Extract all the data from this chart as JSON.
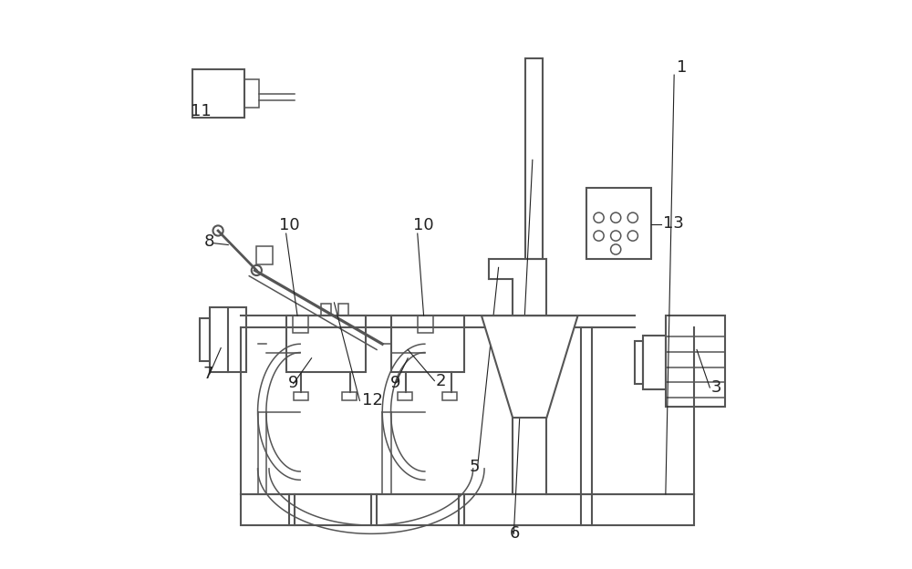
{
  "bg_color": "#ffffff",
  "line_color": "#555555",
  "line_width": 1.5,
  "font_size": 13,
  "font_color": "#222222"
}
